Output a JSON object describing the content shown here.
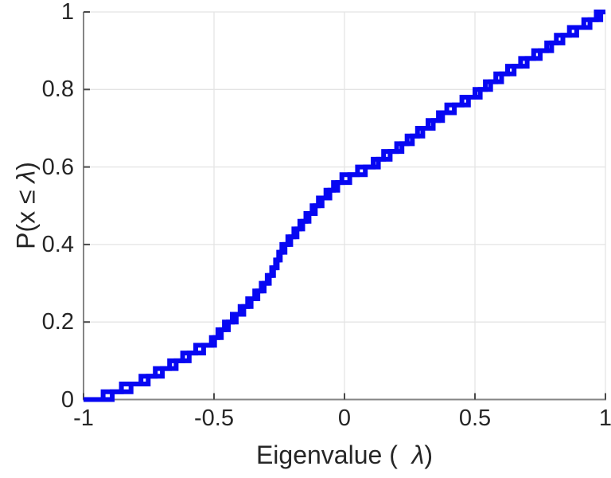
{
  "chart_data": {
    "type": "line",
    "subtype": "ecdf-stairs",
    "title": "",
    "xlabel": "Eigenvalue (  λ)",
    "ylabel": "P(x ≤ λ)",
    "xlabel_parts": {
      "prefix": "Eigenvalue (  ",
      "lambda": "λ",
      "suffix": ")"
    },
    "ylabel_parts": {
      "prefix": "P(x ≤ ",
      "lambda": "λ",
      "suffix": ")"
    },
    "xlim": [
      -1,
      1
    ],
    "ylim": [
      0,
      1
    ],
    "xtick_labels": [
      "-1",
      "-0.5",
      "0",
      "0.5",
      "1"
    ],
    "xtick_values": [
      -1,
      -0.5,
      0,
      0.5,
      1
    ],
    "ytick_labels": [
      "0",
      "0.2",
      "0.4",
      "0.6",
      "0.8",
      "1"
    ],
    "ytick_values": [
      0,
      0.2,
      0.4,
      0.6,
      0.8,
      1
    ],
    "grid": true,
    "legend": null,
    "line_color": "#0707F2",
    "line_width": 6,
    "axis_color": "#858585",
    "tick_color": "#4a4a4a",
    "grid_color": "#e4e4e4",
    "text_color": "#262626",
    "step_increment": 0.02,
    "series": [
      {
        "name": "ecdf-stairs-primary",
        "start": [
          -1,
          0
        ],
        "end_x": 1,
        "eigenvalues": [
          -0.925,
          -0.855,
          -0.78,
          -0.725,
          -0.67,
          -0.62,
          -0.57,
          -0.51,
          -0.485,
          -0.46,
          -0.43,
          -0.4,
          -0.371,
          -0.344,
          -0.319,
          -0.296,
          -0.279,
          -0.264,
          -0.252,
          -0.24,
          -0.217,
          -0.194,
          -0.171,
          -0.148,
          -0.124,
          -0.1,
          -0.071,
          -0.042,
          -0.01,
          0.05,
          0.11,
          0.15,
          0.2,
          0.24,
          0.28,
          0.32,
          0.36,
          0.392,
          0.45,
          0.5,
          0.54,
          0.58,
          0.625,
          0.675,
          0.725,
          0.775,
          0.812,
          0.862,
          0.917,
          0.965
        ]
      },
      {
        "name": "ecdf-stairs-offset",
        "start": [
          -1,
          0
        ],
        "end_x": 1,
        "eigenvalues": [
          -0.89,
          -0.818,
          -0.752,
          -0.698,
          -0.645,
          -0.595,
          -0.54,
          -0.498,
          -0.472,
          -0.445,
          -0.415,
          -0.386,
          -0.358,
          -0.332,
          -0.308,
          -0.288,
          -0.272,
          -0.258,
          -0.246,
          -0.228,
          -0.206,
          -0.182,
          -0.16,
          -0.136,
          -0.112,
          -0.086,
          -0.056,
          -0.026,
          0.02,
          0.08,
          0.13,
          0.175,
          0.22,
          0.26,
          0.3,
          0.34,
          0.376,
          0.421,
          0.475,
          0.52,
          0.56,
          0.602,
          0.65,
          0.7,
          0.75,
          0.794,
          0.837,
          0.89,
          0.941,
          0.982
        ]
      }
    ]
  }
}
